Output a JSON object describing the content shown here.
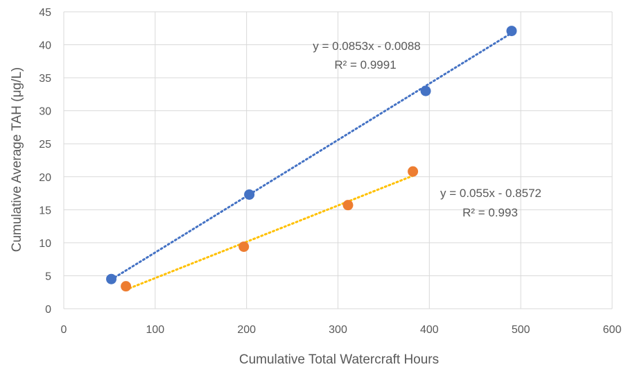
{
  "chart_data": {
    "type": "scatter",
    "xlabel": "Cumulative Total Watercraft Hours",
    "ylabel": "Cumulative Average TAH (μg/L)",
    "xlim": [
      0,
      600
    ],
    "ylim": [
      0,
      45
    ],
    "xticks": [
      0,
      100,
      200,
      300,
      400,
      500,
      600
    ],
    "yticks": [
      0,
      5,
      10,
      15,
      20,
      25,
      30,
      35,
      40,
      45
    ],
    "grid": true,
    "legend": "none",
    "series": [
      {
        "color": "#4472c4",
        "trendline_color": "#4472c4",
        "points": [
          {
            "x": 52,
            "y": 4.5
          },
          {
            "x": 203,
            "y": 17.3
          },
          {
            "x": 396,
            "y": 33.0
          },
          {
            "x": 490,
            "y": 42.1
          }
        ],
        "trendline": {
          "slope": 0.0853,
          "intercept": -0.0088,
          "x_range": [
            52,
            490
          ]
        },
        "equation": "y = 0.0853x - 0.0088",
        "r_squared": "R² = 0.9991"
      },
      {
        "color": "#ed7d31",
        "trendline_color": "#ffc000",
        "points": [
          {
            "x": 68,
            "y": 3.4
          },
          {
            "x": 197,
            "y": 9.4
          },
          {
            "x": 311,
            "y": 15.7
          },
          {
            "x": 382,
            "y": 20.8
          }
        ],
        "trendline": {
          "slope": 0.055,
          "intercept": -0.8572,
          "x_range": [
            68,
            382
          ]
        },
        "equation": "y = 0.055x - 0.8572",
        "r_squared": "R² = 0.993"
      }
    ]
  }
}
